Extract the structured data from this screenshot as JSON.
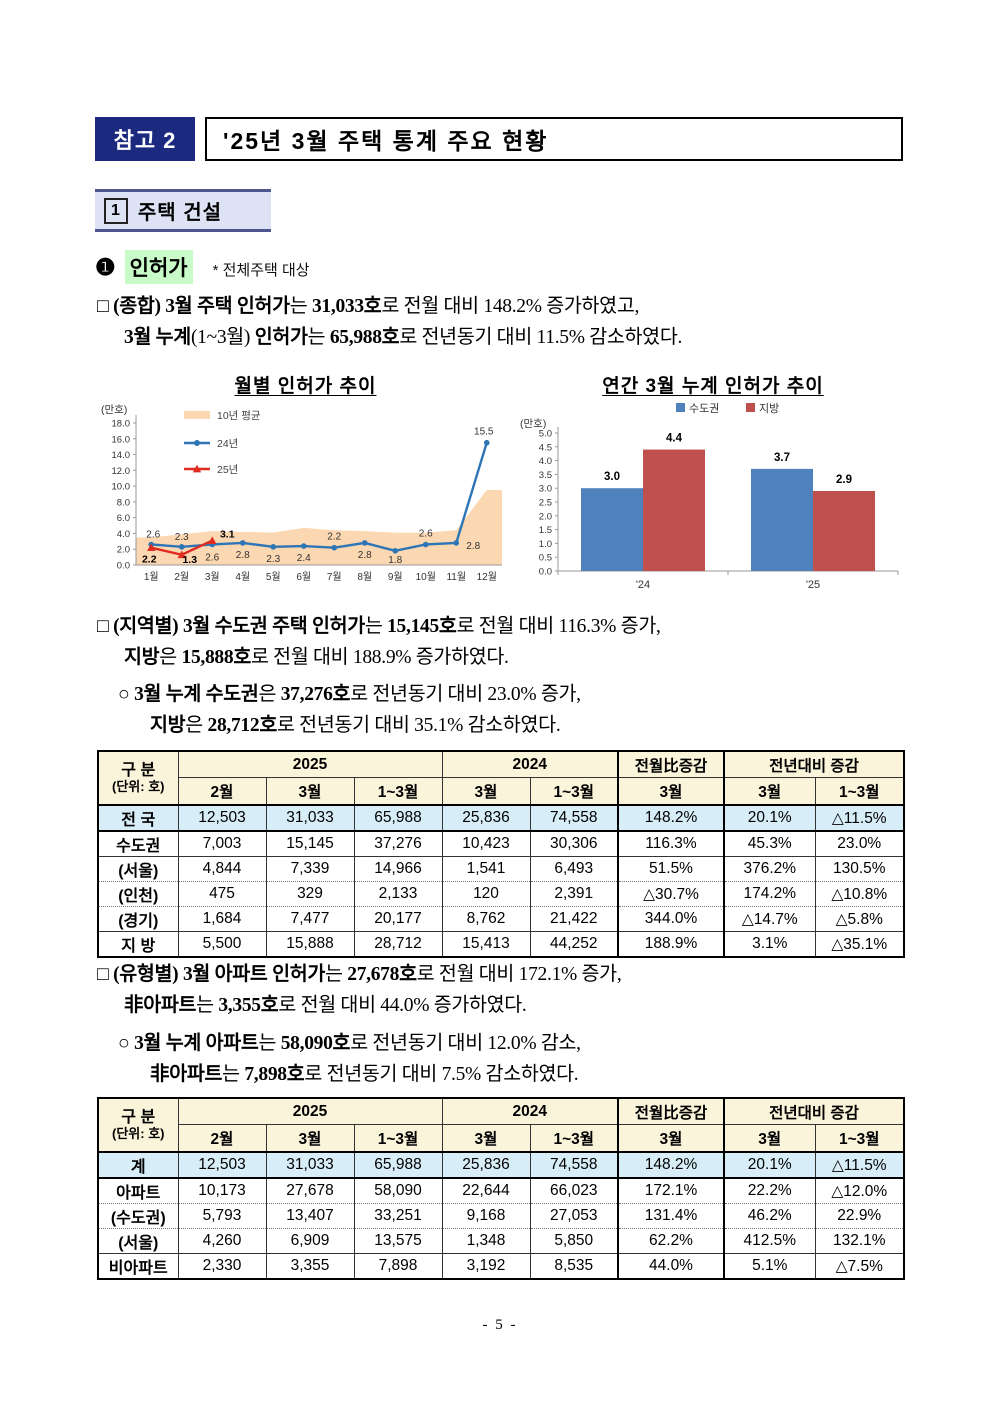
{
  "page": {
    "footer": "- 5 -"
  },
  "header": {
    "badge": "참고 2",
    "title": "'25년 3월 주택 통계 주요 현황"
  },
  "section": {
    "number": "1",
    "title": "주택 건설"
  },
  "subsection": {
    "bullet": "❶",
    "title": "인허가",
    "note": "* 전체주택 대상"
  },
  "colors": {
    "navy": "#1b2a7e",
    "section_bg": "#dde3f5",
    "green_highlight": "#c9fbc9",
    "table_header_bg": "#faf4da",
    "total_row_bg": "#d7edf8",
    "line_blue": "#2e75b6",
    "line_red": "#e02b20",
    "area_peach": "#fbd7b2",
    "bar_blue": "#4f81bd",
    "bar_red": "#c0504d"
  },
  "paragraphs": {
    "summary": [
      [
        {
          "t": "□ ",
          "b": false
        },
        {
          "t": "(종합) 3월 주택 인허가",
          "b": true
        },
        {
          "t": "는 ",
          "b": false
        },
        {
          "t": "31,033호",
          "b": true
        },
        {
          "t": "로 전월 대비 148.2% 증가하였고,",
          "b": false
        }
      ],
      [
        {
          "t": "3월 누계",
          "b": true
        },
        {
          "t": "(1~3월)",
          "b": false
        },
        {
          "t": " 인허가",
          "b": true
        },
        {
          "t": "는 ",
          "b": false
        },
        {
          "t": "65,988호",
          "b": true
        },
        {
          "t": "로 전년동기 대비 11.5% 감소하였다.",
          "b": false
        }
      ]
    ],
    "region": [
      [
        {
          "t": "□ ",
          "b": false
        },
        {
          "t": "(지역별) 3월 수도권 주택 인허가",
          "b": true
        },
        {
          "t": "는 ",
          "b": false
        },
        {
          "t": "15,145호",
          "b": true
        },
        {
          "t": "로 전월 대비 116.3% 증가,",
          "b": false
        }
      ],
      [
        {
          "t": "지방",
          "b": true
        },
        {
          "t": "은 ",
          "b": false
        },
        {
          "t": "15,888호",
          "b": true
        },
        {
          "t": "로 전월 대비 188.9% 증가하였다.",
          "b": false
        }
      ]
    ],
    "region_sub": [
      [
        {
          "t": "○ ",
          "b": false
        },
        {
          "t": "3월 누계 수도권",
          "b": true
        },
        {
          "t": "은 ",
          "b": false
        },
        {
          "t": "37,276호",
          "b": true
        },
        {
          "t": "로 전년동기 대비 23.0% 증가,",
          "b": false
        }
      ],
      [
        {
          "t": "지방",
          "b": true
        },
        {
          "t": "은 ",
          "b": false
        },
        {
          "t": "28,712호",
          "b": true
        },
        {
          "t": "로 전년동기 대비 35.1% 감소하였다.",
          "b": false
        }
      ]
    ],
    "type": [
      [
        {
          "t": "□ ",
          "b": false
        },
        {
          "t": "(유형별) 3월 아파트 인허가",
          "b": true
        },
        {
          "t": "는 ",
          "b": false
        },
        {
          "t": "27,678호",
          "b": true
        },
        {
          "t": "로 전월 대비 172.1% 증가,",
          "b": false
        }
      ],
      [
        {
          "t": "非아파트",
          "b": true
        },
        {
          "t": "는 ",
          "b": false
        },
        {
          "t": "3,355호",
          "b": true
        },
        {
          "t": "로 전월 대비 44.0% 증가하였다.",
          "b": false
        }
      ]
    ],
    "type_sub": [
      [
        {
          "t": "○ ",
          "b": false
        },
        {
          "t": "3월 누계 아파트",
          "b": true
        },
        {
          "t": "는 ",
          "b": false
        },
        {
          "t": "58,090호",
          "b": true
        },
        {
          "t": "로 전년동기 대비 12.0% 감소,",
          "b": false
        }
      ],
      [
        {
          "t": "非아파트",
          "b": true
        },
        {
          "t": "는 ",
          "b": false
        },
        {
          "t": "7,898호",
          "b": true
        },
        {
          "t": "로 전년동기 대비 7.5% 감소하였다.",
          "b": false
        }
      ]
    ]
  },
  "chart_data": [
    {
      "type": "line",
      "title": "월별 인허가 추이",
      "unit_label": "(만호)",
      "x_labels": [
        "1월",
        "2월",
        "3월",
        "4월",
        "5월",
        "6월",
        "7월",
        "8월",
        "9월",
        "10월",
        "11월",
        "12월"
      ],
      "ylim": [
        0,
        18
      ],
      "ytick": 2,
      "grid": false,
      "legend_position": "top-left-inside",
      "series": [
        {
          "name": "10년 평균",
          "type": "area",
          "color": "#fbd7b2",
          "values": [
            3.5,
            3.9,
            4.3,
            4.2,
            4.1,
            4.7,
            4.4,
            4.3,
            4.1,
            4.1,
            4.4,
            9.5
          ]
        },
        {
          "name": "24년",
          "type": "line",
          "marker": "circle",
          "color": "#2e75b6",
          "values": [
            2.6,
            2.3,
            2.6,
            2.8,
            2.3,
            2.4,
            2.2,
            2.8,
            1.8,
            2.6,
            2.8,
            15.5
          ]
        },
        {
          "name": "25년",
          "type": "line",
          "marker": "triangle",
          "color": "#e02b20",
          "values": [
            2.2,
            1.3,
            3.1
          ]
        }
      ]
    },
    {
      "type": "bar",
      "title": "연간 3월 누계 인허가 추이",
      "unit_label": "(만호)",
      "categories": [
        "'24",
        "'25"
      ],
      "ylim": [
        0,
        5
      ],
      "ytick": 0.5,
      "grid": false,
      "legend_position": "top-center",
      "series": [
        {
          "name": "수도권",
          "color": "#4f81bd",
          "values": [
            3.0,
            3.7
          ]
        },
        {
          "name": "지방",
          "color": "#c0504d",
          "values": [
            4.4,
            2.9
          ]
        }
      ]
    }
  ],
  "region_table": {
    "header": {
      "group_label": "구 분",
      "unit_label": "(단위: 호)",
      "groups": [
        "2025",
        "2024",
        "전월比증감",
        "전년대비 증감"
      ],
      "subheaders": [
        "2월",
        "3월",
        "1~3월",
        "3월",
        "1~3월",
        "3월",
        "3월",
        "1~3월"
      ]
    },
    "rows": [
      {
        "label": "전 국",
        "values": [
          "12,503",
          "31,033",
          "65,988",
          "25,836",
          "74,558",
          "148.2%",
          "20.1%",
          "△11.5%"
        ]
      },
      {
        "label": "수도권",
        "values": [
          "7,003",
          "15,145",
          "37,276",
          "10,423",
          "30,306",
          "116.3%",
          "45.3%",
          "23.0%"
        ]
      },
      {
        "label": "(서울)",
        "values": [
          "4,844",
          "7,339",
          "14,966",
          "1,541",
          "6,493",
          "51.5%",
          "376.2%",
          "130.5%"
        ]
      },
      {
        "label": "(인천)",
        "values": [
          "475",
          "329",
          "2,133",
          "120",
          "2,391",
          "△30.7%",
          "174.2%",
          "△10.8%"
        ]
      },
      {
        "label": "(경기)",
        "values": [
          "1,684",
          "7,477",
          "20,177",
          "8,762",
          "21,422",
          "344.0%",
          "△14.7%",
          "△5.8%"
        ]
      },
      {
        "label": "지 방",
        "values": [
          "5,500",
          "15,888",
          "28,712",
          "15,413",
          "44,252",
          "188.9%",
          "3.1%",
          "△35.1%"
        ]
      }
    ]
  },
  "type_table": {
    "header": {
      "group_label": "구 분",
      "unit_label": "(단위: 호)",
      "groups": [
        "2025",
        "2024",
        "전월比증감",
        "전년대비 증감"
      ],
      "subheaders": [
        "2월",
        "3월",
        "1~3월",
        "3월",
        "1~3월",
        "3월",
        "3월",
        "1~3월"
      ]
    },
    "rows": [
      {
        "label": "계",
        "values": [
          "12,503",
          "31,033",
          "65,988",
          "25,836",
          "74,558",
          "148.2%",
          "20.1%",
          "△11.5%"
        ]
      },
      {
        "label": "아파트",
        "values": [
          "10,173",
          "27,678",
          "58,090",
          "22,644",
          "66,023",
          "172.1%",
          "22.2%",
          "△12.0%"
        ]
      },
      {
        "label": "(수도권)",
        "values": [
          "5,793",
          "13,407",
          "33,251",
          "9,168",
          "27,053",
          "131.4%",
          "46.2%",
          "22.9%"
        ]
      },
      {
        "label": "(서울)",
        "values": [
          "4,260",
          "6,909",
          "13,575",
          "1,348",
          "5,850",
          "62.2%",
          "412.5%",
          "132.1%"
        ]
      },
      {
        "label": "비아파트",
        "values": [
          "2,330",
          "3,355",
          "7,898",
          "3,192",
          "8,535",
          "44.0%",
          "5.1%",
          "△7.5%"
        ]
      }
    ]
  }
}
